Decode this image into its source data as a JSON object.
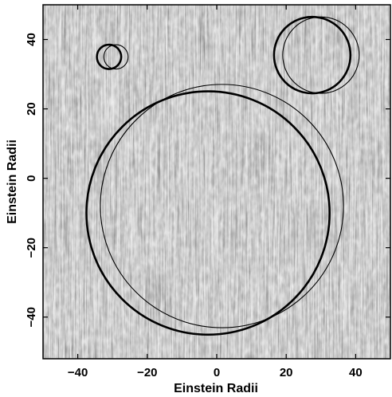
{
  "chart_data": {
    "type": "scatter",
    "title": "",
    "xlabel": "Einstein Radii",
    "ylabel": "Einstein Radii",
    "xlim": [
      -50,
      50
    ],
    "ylim": [
      -52,
      50
    ],
    "xticks": [
      -40,
      -20,
      0,
      20,
      40
    ],
    "yticks": [
      -40,
      -20,
      0,
      20,
      40
    ],
    "background": "magnification map (grayscale vertical streak texture)",
    "circles": [
      {
        "cx": -31.0,
        "cy": 35.0,
        "r": 3.5,
        "weight": "thick"
      },
      {
        "cx": -29.0,
        "cy": 35.0,
        "r": 3.5,
        "weight": "thin"
      },
      {
        "cx": 27.5,
        "cy": 35.5,
        "r": 11.0,
        "weight": "thick"
      },
      {
        "cx": 30.0,
        "cy": 35.5,
        "r": 11.0,
        "weight": "thin"
      },
      {
        "cx": -2.5,
        "cy": -10.0,
        "r": 35.0,
        "weight": "thick"
      },
      {
        "cx": 1.5,
        "cy": -8.0,
        "r": 35.0,
        "weight": "thin"
      }
    ]
  },
  "colors": {
    "texture_dark": "#5a5a5a",
    "texture_mid": "#8c8c8c",
    "texture_light": "#c8c8c8",
    "circle_stroke": "#000000"
  }
}
